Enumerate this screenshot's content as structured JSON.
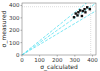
{
  "chart_data": {
    "type": "scatter",
    "xlabel": "σ_calculated",
    "ylabel": "σ_measured",
    "xlim": [
      0,
      420
    ],
    "ylim": [
      0,
      420
    ],
    "xticks": [
      0,
      100,
      200,
      300,
      400
    ],
    "yticks": [
      0,
      100,
      200,
      300,
      400
    ],
    "grid": false,
    "series": [
      {
        "type": "scatter",
        "color": "#111111",
        "marker": "square",
        "x": [
          295,
          305,
          315,
          320,
          330,
          340,
          345,
          355,
          360,
          370,
          385
        ],
        "values": [
          305,
          335,
          320,
          345,
          360,
          315,
          355,
          370,
          345,
          385,
          370
        ]
      },
      {
        "type": "line",
        "color": "#44ddee",
        "line_style": "dashed",
        "slope": 1
      },
      {
        "type": "line",
        "color": "#44ddee",
        "line_style": "dashed",
        "slope": 1.15
      },
      {
        "type": "line",
        "color": "#44ddee",
        "line_style": "dashed",
        "slope": 0.85
      },
      {
        "type": "hline",
        "color": "#aaaaaa",
        "line_style": "dotted",
        "value": 390
      },
      {
        "type": "vline",
        "color": "#aaaaaa",
        "line_style": "dotted",
        "value": 390
      }
    ]
  }
}
